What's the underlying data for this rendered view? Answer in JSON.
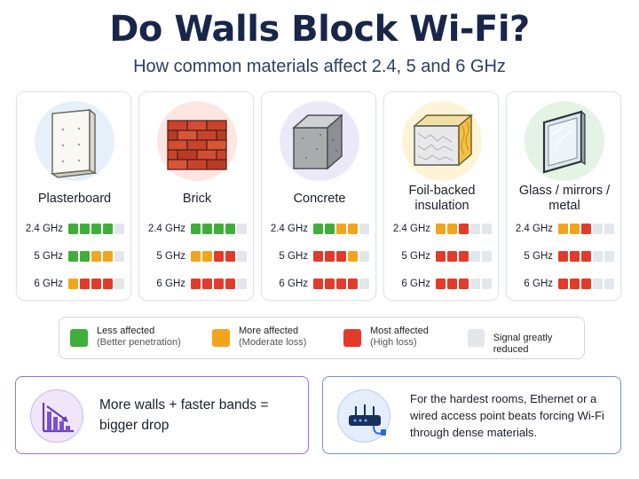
{
  "header": {
    "title": "Do Walls Block Wi-Fi?",
    "subtitle": "How common materials affect 2.4, 5 and 6 GHz"
  },
  "materials": [
    {
      "name": "Plasterboard",
      "icon": "plasterboard-icon",
      "bands": [
        {
          "label": "2.4 GHz",
          "levels": [
            "g",
            "g",
            "g",
            "g",
            "n"
          ]
        },
        {
          "label": "5 GHz",
          "levels": [
            "g",
            "g",
            "o",
            "o",
            "n"
          ]
        },
        {
          "label": "6 GHz",
          "levels": [
            "o",
            "r",
            "r",
            "r",
            "n"
          ]
        }
      ]
    },
    {
      "name": "Brick",
      "icon": "brick-icon",
      "bands": [
        {
          "label": "2.4 GHz",
          "levels": [
            "g",
            "g",
            "g",
            "g",
            "n"
          ]
        },
        {
          "label": "5 GHz",
          "levels": [
            "o",
            "o",
            "r",
            "r",
            "n"
          ]
        },
        {
          "label": "6 GHz",
          "levels": [
            "r",
            "r",
            "r",
            "r",
            "n"
          ]
        }
      ]
    },
    {
      "name": "Concrete",
      "icon": "concrete-block-icon",
      "bands": [
        {
          "label": "2.4 GHz",
          "levels": [
            "g",
            "g",
            "o",
            "o",
            "n"
          ]
        },
        {
          "label": "5 GHz",
          "levels": [
            "r",
            "r",
            "r",
            "o",
            "n"
          ]
        },
        {
          "label": "6 GHz",
          "levels": [
            "r",
            "r",
            "r",
            "r",
            "n"
          ]
        }
      ]
    },
    {
      "name": "Foil-backed insulation",
      "icon": "foil-insulation-icon",
      "bands": [
        {
          "label": "2.4 GHz",
          "levels": [
            "o",
            "o",
            "r",
            "n",
            "n"
          ]
        },
        {
          "label": "5 GHz",
          "levels": [
            "r",
            "r",
            "r",
            "n",
            "n"
          ]
        },
        {
          "label": "6 GHz",
          "levels": [
            "r",
            "r",
            "r",
            "n",
            "n"
          ]
        }
      ]
    },
    {
      "name": "Glass / mirrors / metal",
      "icon": "glass-mirror-icon",
      "bands": [
        {
          "label": "2.4 GHz",
          "levels": [
            "o",
            "o",
            "r",
            "n",
            "n"
          ]
        },
        {
          "label": "5 GHz",
          "levels": [
            "r",
            "r",
            "r",
            "n",
            "n"
          ]
        },
        {
          "label": "6 GHz",
          "levels": [
            "r",
            "r",
            "r",
            "n",
            "n"
          ]
        }
      ]
    }
  ],
  "legend": [
    {
      "title": "Less affected",
      "sub": "(Better penetration)",
      "color": "#3fae3a"
    },
    {
      "title": "More affected",
      "sub": "(Moderate loss)",
      "color": "#f2a51c"
    },
    {
      "title": "Most affected",
      "sub": "(High loss)",
      "color": "#e23b2a"
    },
    {
      "title": "Signal greatly reduced",
      "sub": "",
      "color": "#e3e6ea"
    }
  ],
  "tips": {
    "left": {
      "text": "More walls + faster bands = bigger drop",
      "icon": "declining-bar-chart-icon"
    },
    "right": {
      "text": "For the hardest rooms, Ethernet or a wired access point beats forcing Wi-Fi through dense materials.",
      "icon": "wired-router-icon"
    }
  },
  "colors": {
    "green": "#3fae3a",
    "orange": "#f2a51c",
    "red": "#e23b2a",
    "empty": "#e3e6ea",
    "title": "#18264a"
  }
}
